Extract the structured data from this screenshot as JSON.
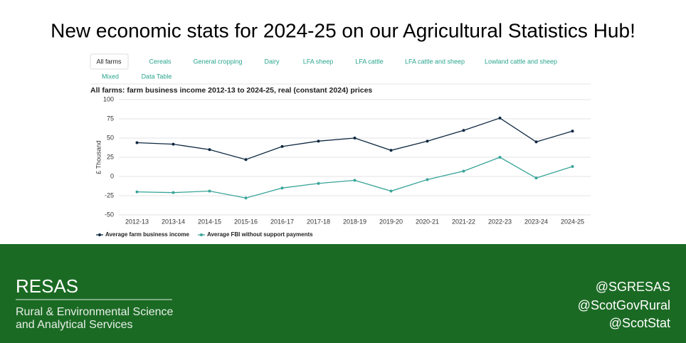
{
  "header": {
    "title": "New economic stats for 2024-25 on our Agricultural Statistics Hub!"
  },
  "tabs": [
    "All farms",
    "Cereals",
    "General cropping",
    "Dairy",
    "LFA sheep",
    "LFA cattle",
    "LFA cattle and sheep",
    "Lowland cattle and sheep",
    "Mixed",
    "Data Table"
  ],
  "chart_data": {
    "type": "line",
    "title": "All farms: farm business income 2012-13 to 2024-25, real (constant 2024) prices",
    "y_label": "£ Thousand",
    "categories": [
      "2012-13",
      "2013-14",
      "2014-15",
      "2015-16",
      "2016-17",
      "2017-18",
      "2018-19",
      "2019-20",
      "2020-21",
      "2021-22",
      "2022-23",
      "2023-24",
      "2024-25"
    ],
    "series": [
      {
        "name": "Average farm business income",
        "color": "#0e2841",
        "values": [
          44,
          42,
          35,
          22,
          39,
          46,
          50,
          34,
          46,
          60,
          76,
          45,
          59
        ]
      },
      {
        "name": "Average FBI without support payments",
        "color": "#3aa59a",
        "values": [
          -20,
          -21,
          -19,
          -28,
          -15,
          -9,
          -5,
          -19,
          -4,
          7,
          25,
          -2,
          13
        ]
      }
    ],
    "ylim": [
      -50,
      100
    ],
    "yticks": [
      -50,
      -25,
      0,
      25,
      50,
      75,
      100
    ],
    "grid": true,
    "legend": "bottom"
  },
  "footer": {
    "logo": "RESAS",
    "line1": "Rural & Environmental Science",
    "line2": "and Analytical Services",
    "handles": [
      "@SGRESAS",
      "@ScotGovRural",
      "@ScotStat"
    ]
  }
}
